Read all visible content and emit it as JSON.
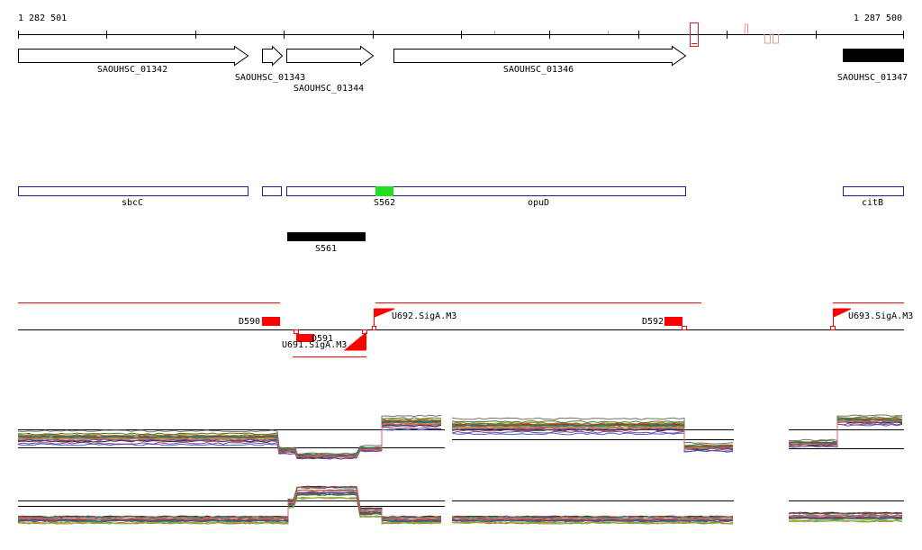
{
  "coords": {
    "start": "1 282 501",
    "end": "1 287 500"
  },
  "colors": {
    "gene_outline": "#000000",
    "annotation_outline": "#1c1c99",
    "highlight": "#22dd22",
    "feature_red": "#ff0000",
    "paper": "#ffffff"
  },
  "genes": [
    {
      "id": "g1",
      "name": "SAOUHSC_01342",
      "strand": "+"
    },
    {
      "id": "g2",
      "name": "SAOUHSC_01343",
      "strand": "+"
    },
    {
      "id": "g3",
      "name": "SAOUHSC_01344",
      "strand": "+"
    },
    {
      "id": "g4",
      "name": "SAOUHSC_01346",
      "strand": "+"
    },
    {
      "id": "g5",
      "name": "SAOUHSC_01347",
      "strand": "-"
    }
  ],
  "annotations": [
    {
      "id": "a1",
      "name": "sbcC"
    },
    {
      "id": "a2",
      "name": ""
    },
    {
      "id": "a3",
      "name": "S562"
    },
    {
      "id": "a4",
      "name": "opuD"
    },
    {
      "id": "a5",
      "name": "citB"
    }
  ],
  "srna": {
    "name": "S561"
  },
  "features": {
    "downregulated": [
      "D590",
      "D591",
      "D592"
    ],
    "upregulated": [
      "U691.SigA.M3",
      "U692.SigA.M3",
      "U693.SigA.M3"
    ]
  }
}
